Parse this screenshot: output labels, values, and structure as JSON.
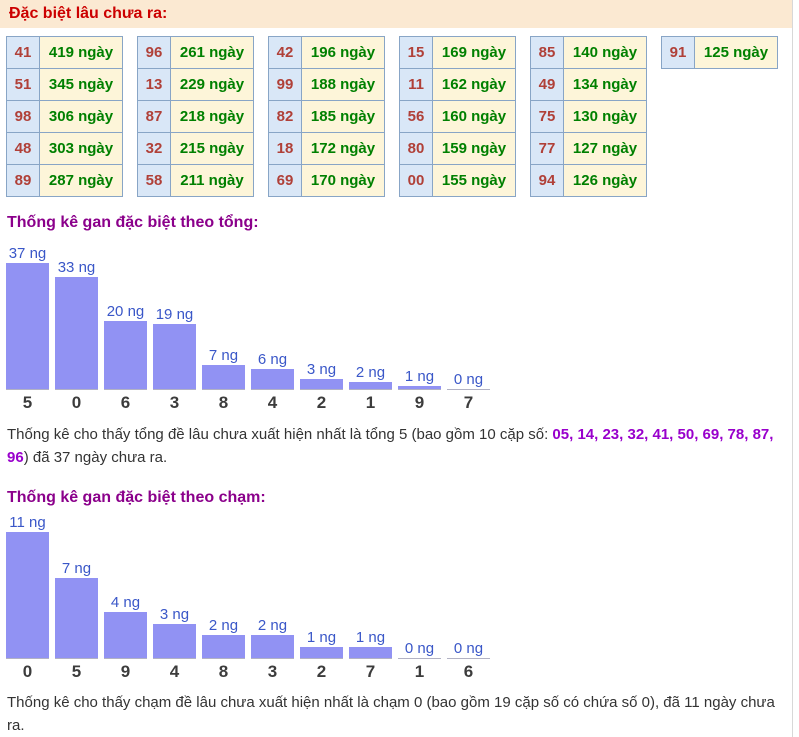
{
  "header": {
    "title": "Đặc biệt lâu chưa ra:"
  },
  "gan_table": {
    "columns": [
      {
        "rows": [
          [
            "41",
            "419 ngày"
          ],
          [
            "51",
            "345 ngày"
          ],
          [
            "98",
            "306 ngày"
          ],
          [
            "48",
            "303 ngày"
          ],
          [
            "89",
            "287 ngày"
          ]
        ]
      },
      {
        "rows": [
          [
            "96",
            "261 ngày"
          ],
          [
            "13",
            "229 ngày"
          ],
          [
            "87",
            "218 ngày"
          ],
          [
            "32",
            "215 ngày"
          ],
          [
            "58",
            "211 ngày"
          ]
        ]
      },
      {
        "rows": [
          [
            "42",
            "196 ngày"
          ],
          [
            "99",
            "188 ngày"
          ],
          [
            "82",
            "185 ngày"
          ],
          [
            "18",
            "172 ngày"
          ],
          [
            "69",
            "170 ngày"
          ]
        ]
      },
      {
        "rows": [
          [
            "15",
            "169 ngày"
          ],
          [
            "11",
            "162 ngày"
          ],
          [
            "56",
            "160 ngày"
          ],
          [
            "80",
            "159 ngày"
          ],
          [
            "00",
            "155 ngày"
          ]
        ]
      },
      {
        "rows": [
          [
            "85",
            "140 ngày"
          ],
          [
            "49",
            "134 ngày"
          ],
          [
            "75",
            "130 ngày"
          ],
          [
            "77",
            "127 ngày"
          ],
          [
            "94",
            "126 ngày"
          ]
        ]
      },
      {
        "rows": [
          [
            "91",
            "125 ngày"
          ]
        ]
      }
    ]
  },
  "chart_data": [
    {
      "type": "bar",
      "title": "Thống kê gan đặc biệt theo tổng:",
      "categories": [
        "5",
        "0",
        "6",
        "3",
        "8",
        "4",
        "2",
        "1",
        "9",
        "7"
      ],
      "values": [
        37,
        33,
        20,
        19,
        7,
        6,
        3,
        2,
        1,
        0
      ],
      "value_label_suffix": " ng",
      "xlabel": "",
      "ylabel": "",
      "ylim": [
        0,
        37
      ],
      "grid": false,
      "legend": "none",
      "bar_color": "#9192f3"
    },
    {
      "type": "bar",
      "title": "Thống kê gan đặc biệt theo chạm:",
      "categories": [
        "0",
        "5",
        "9",
        "4",
        "8",
        "3",
        "2",
        "7",
        "1",
        "6"
      ],
      "values": [
        11,
        7,
        4,
        3,
        2,
        2,
        1,
        1,
        0,
        0
      ],
      "value_label_suffix": " ng",
      "xlabel": "",
      "ylabel": "",
      "ylim": [
        0,
        11
      ],
      "grid": false,
      "legend": "none",
      "bar_color": "#9192f3"
    }
  ],
  "paragraphs": {
    "tong": {
      "before": "Thống kê cho thấy tổng đề lâu chưa xuất hiện nhất là tổng 5 (bao gồm 10 cặp số: ",
      "highlight": "05, 14, 23, 32, 41, 50, 69, 78, 87, 96",
      "after": ") đã 37 ngày chưa ra."
    },
    "cham": {
      "text": "Thống kê cho thấy chạm đề lâu chưa xuất hiện nhất là chạm 0 (bao gồm 19 cặp số có chứa số 0), đã 11 ngày chưa ra."
    }
  },
  "colors": {
    "header_bg": "#fbe9d2",
    "header_text": "#cc0000",
    "table_border": "#88a5c6",
    "num_cell_bg": "#d9e7f7",
    "day_cell_bg": "#fdf5d9",
    "num_text": "#b04038",
    "day_text": "#008000",
    "chart_title": "#8b008b",
    "bar": "#9192f3",
    "bar_value_label": "#3a57c8",
    "category_label": "#3c3c3c",
    "highlight_numbers": "#9900cc"
  }
}
